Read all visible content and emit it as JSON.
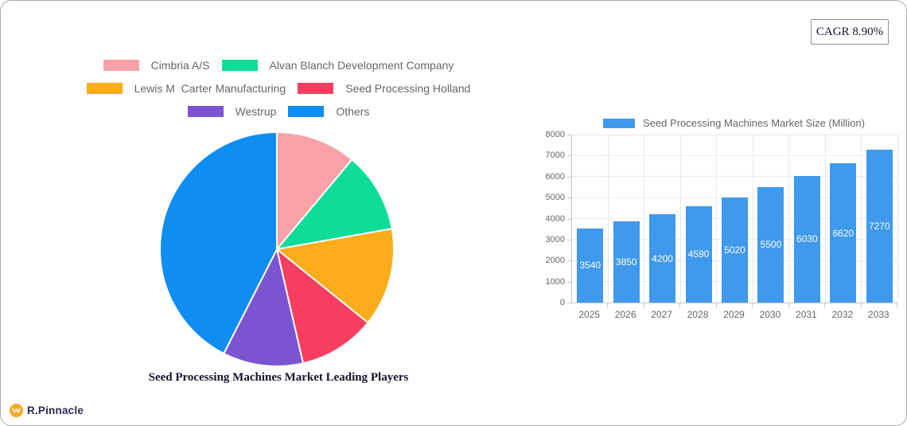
{
  "cagr": {
    "label": "CAGR 8.90%"
  },
  "brand": {
    "name": "R.Pinnacle",
    "logo_color": "#f9a825"
  },
  "chart_data": [
    {
      "type": "pie",
      "title": "Seed Processing Machines Market Leading Players",
      "labels": [
        "Cimbria A/S",
        "Alvan Blanch Development Company",
        "Lewis M  Carter Manufacturing",
        "Seed Processing Holland",
        "Westrup",
        "Others"
      ],
      "values": [
        11.1,
        11.1,
        13.6,
        10.6,
        11.1,
        42.5
      ],
      "colors": [
        "#f7a1a8",
        "#10dc99",
        "#fbac1b",
        "#f83e5e",
        "#7b55d1",
        "#0f8df2"
      ],
      "legend_position": "top",
      "start_angle_deg": 0,
      "direction": "clockwise",
      "slice_border_color": "#ffffff"
    },
    {
      "type": "bar",
      "legend": "Seed Processing Machines Market Size (Million)",
      "categories": [
        "2025",
        "2026",
        "2027",
        "2028",
        "2029",
        "2030",
        "2031",
        "2032",
        "2033"
      ],
      "values": [
        3540,
        3850,
        4200,
        4590,
        5020,
        5500,
        6030,
        6620,
        7270
      ],
      "bar_color": "#3f99ec",
      "value_label_color": "#ffffff",
      "xlabel": "",
      "ylabel": "",
      "ylim": [
        0,
        8000
      ],
      "y_ticks": [
        0,
        1000,
        2000,
        3000,
        4000,
        5000,
        6000,
        7000,
        8000
      ],
      "grid": true,
      "legend_position": "top"
    }
  ]
}
